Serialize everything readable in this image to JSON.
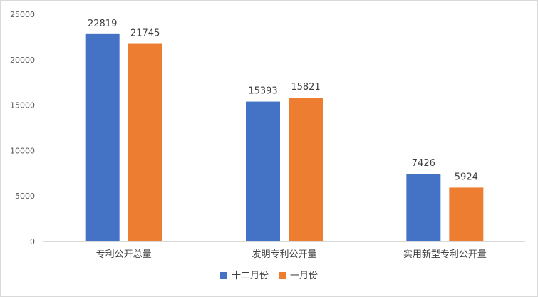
{
  "chart_data": {
    "type": "bar",
    "categories": [
      "专利公开总量",
      "发明专利公开量",
      "实用新型专利公开量"
    ],
    "series": [
      {
        "name": "十二月份",
        "values": [
          22819,
          15393,
          7426
        ],
        "color": "#4472C4"
      },
      {
        "name": "一月份",
        "values": [
          21745,
          15821,
          5924
        ],
        "color": "#ED7D31"
      }
    ],
    "yticks": [
      0,
      5000,
      10000,
      15000,
      20000,
      25000
    ],
    "ylim": [
      0,
      25000
    ],
    "grid": false,
    "legend": "bottom",
    "data_labels": true
  }
}
